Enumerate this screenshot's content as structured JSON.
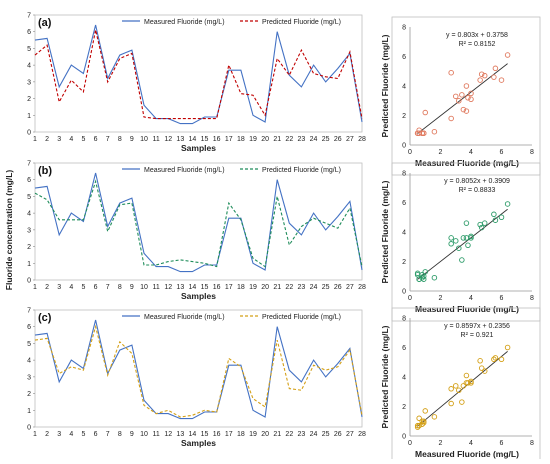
{
  "figure": {
    "shared_ylabel": "Fluoride concentration (mg/L)"
  },
  "chart_data": [
    {
      "type": "line",
      "panel": "(a)",
      "xlabel": "Samples",
      "ylabel": "Fluoride concentration (mg/L)",
      "x": [
        1,
        2,
        3,
        4,
        5,
        6,
        7,
        8,
        9,
        10,
        11,
        12,
        13,
        14,
        15,
        16,
        17,
        18,
        19,
        20,
        21,
        22,
        23,
        24,
        25,
        26,
        27,
        28
      ],
      "xlim": [
        1,
        28
      ],
      "ylim": [
        0,
        7
      ],
      "yticks": [
        0,
        1,
        2,
        3,
        4,
        5,
        6,
        7
      ],
      "grid": false,
      "legend_position": "top-right",
      "series": [
        {
          "name": "Measured Fluoride (mg/L)",
          "color": "#4472c4",
          "style": "solid",
          "values": [
            5.5,
            5.6,
            2.7,
            4.0,
            3.5,
            6.4,
            3.2,
            4.6,
            4.9,
            1.6,
            0.8,
            0.8,
            0.5,
            0.5,
            0.9,
            0.9,
            3.7,
            3.7,
            1.0,
            0.6,
            6.0,
            3.4,
            2.7,
            4.0,
            3.0,
            3.8,
            4.7,
            0.6
          ]
        },
        {
          "name": "Predicted Fluoride (mg/L)",
          "color": "#c00000",
          "style": "dashed",
          "values": [
            4.6,
            5.2,
            1.8,
            3.1,
            2.4,
            6.1,
            3.0,
            4.4,
            4.7,
            0.9,
            0.8,
            0.8,
            0.8,
            0.8,
            0.8,
            0.8,
            4.0,
            2.3,
            2.2,
            1.0,
            4.4,
            3.4,
            4.9,
            3.5,
            3.3,
            3.2,
            4.8,
            0.8
          ]
        }
      ]
    },
    {
      "type": "scatter",
      "panel": "(a)",
      "xlabel": "Measured Fluoride (mg/L)",
      "ylabel": "Predicted Fluoride (mg/L)",
      "xlim": [
        0,
        8
      ],
      "ylim": [
        0,
        8
      ],
      "xticks": [
        0,
        2,
        4,
        6,
        8
      ],
      "yticks": [
        0,
        2,
        4,
        6,
        8
      ],
      "marker_color": "#e07a5f",
      "trendline": {
        "slope": 0.803,
        "intercept": 0.3758,
        "color": "#333333"
      },
      "annotations": [
        "y = 0.803x + 0.3758",
        "R² = 0.8152"
      ],
      "x": [
        5.5,
        5.6,
        2.7,
        4.0,
        3.5,
        6.4,
        3.2,
        4.6,
        4.9,
        1.6,
        0.8,
        0.8,
        0.5,
        0.5,
        0.9,
        0.9,
        3.7,
        3.7,
        1.0,
        0.6,
        6.0,
        3.4,
        2.7,
        4.0,
        3.0,
        3.8,
        4.7,
        0.6
      ],
      "y": [
        4.6,
        5.2,
        1.8,
        3.1,
        2.4,
        6.1,
        3.0,
        4.4,
        4.7,
        0.9,
        0.8,
        0.8,
        0.8,
        0.8,
        0.8,
        0.8,
        4.0,
        2.3,
        2.2,
        1.0,
        4.4,
        3.4,
        4.9,
        3.5,
        3.3,
        3.2,
        4.8,
        0.8
      ]
    },
    {
      "type": "line",
      "panel": "(b)",
      "xlabel": "Samples",
      "ylabel": "Fluoride concentration (mg/L)",
      "x": [
        1,
        2,
        3,
        4,
        5,
        6,
        7,
        8,
        9,
        10,
        11,
        12,
        13,
        14,
        15,
        16,
        17,
        18,
        19,
        20,
        21,
        22,
        23,
        24,
        25,
        26,
        27,
        28
      ],
      "xlim": [
        1,
        28
      ],
      "ylim": [
        0,
        7
      ],
      "yticks": [
        0,
        1,
        2,
        3,
        4,
        5,
        6,
        7
      ],
      "grid": false,
      "legend_position": "top-right",
      "series": [
        {
          "name": "Measured Fluoride (mg/L)",
          "color": "#4472c4",
          "style": "solid",
          "values": [
            5.5,
            5.6,
            2.7,
            4.0,
            3.5,
            6.4,
            3.2,
            4.6,
            4.9,
            1.6,
            0.8,
            0.8,
            0.5,
            0.5,
            0.9,
            0.9,
            3.7,
            3.7,
            1.0,
            0.6,
            6.0,
            3.4,
            2.7,
            4.0,
            3.0,
            3.8,
            4.7,
            0.6
          ]
        },
        {
          "name": "Predicted Fluoride (mg/L)",
          "color": "#1e8c5a",
          "style": "dashed",
          "values": [
            5.2,
            4.8,
            3.6,
            3.6,
            3.6,
            5.9,
            2.9,
            4.5,
            4.6,
            0.9,
            0.9,
            1.1,
            1.2,
            1.1,
            1.0,
            0.8,
            4.6,
            3.6,
            1.3,
            0.8,
            5.0,
            2.1,
            3.2,
            3.7,
            3.4,
            3.1,
            4.3,
            0.8
          ]
        }
      ]
    },
    {
      "type": "scatter",
      "panel": "(b)",
      "xlabel": "Measured Fluoride (mg/L)",
      "ylabel": "Predicted Fluoride (mg/L)",
      "xlim": [
        0,
        8
      ],
      "ylim": [
        0,
        8
      ],
      "xticks": [
        0,
        2,
        4,
        6,
        8
      ],
      "yticks": [
        0,
        2,
        4,
        6,
        8
      ],
      "marker_color": "#2e9c6a",
      "trendline": {
        "slope": 0.8052,
        "intercept": 0.3909,
        "color": "#333333"
      },
      "annotations": [
        "y = 0.8052x + 0.3909",
        "R² = 0.8833"
      ],
      "x": [
        5.5,
        5.6,
        2.7,
        4.0,
        3.5,
        6.4,
        3.2,
        4.6,
        4.9,
        1.6,
        0.8,
        0.8,
        0.5,
        0.5,
        0.9,
        0.9,
        3.7,
        3.7,
        1.0,
        0.6,
        6.0,
        3.4,
        2.7,
        4.0,
        3.0,
        3.8,
        4.7,
        0.6
      ],
      "y": [
        5.2,
        4.8,
        3.6,
        3.6,
        3.6,
        5.9,
        2.9,
        4.5,
        4.6,
        0.9,
        0.9,
        1.1,
        1.2,
        1.1,
        1.0,
        0.8,
        4.6,
        3.6,
        1.3,
        0.8,
        5.0,
        2.1,
        3.2,
        3.7,
        3.4,
        3.1,
        4.3,
        0.8
      ]
    },
    {
      "type": "line",
      "panel": "(c)",
      "xlabel": "Samples",
      "ylabel": "Fluoride concentration (mg/L)",
      "x": [
        1,
        2,
        3,
        4,
        5,
        6,
        7,
        8,
        9,
        10,
        11,
        12,
        13,
        14,
        15,
        16,
        17,
        18,
        19,
        20,
        21,
        22,
        23,
        24,
        25,
        26,
        27,
        28
      ],
      "xlim": [
        1,
        28
      ],
      "ylim": [
        0,
        7
      ],
      "yticks": [
        0,
        1,
        2,
        3,
        4,
        5,
        6,
        7
      ],
      "grid": false,
      "legend_position": "top-right",
      "series": [
        {
          "name": "Measured Fluoride (mg/L)",
          "color": "#4472c4",
          "style": "solid",
          "values": [
            5.5,
            5.6,
            2.7,
            4.0,
            3.5,
            6.4,
            3.2,
            4.6,
            4.9,
            1.6,
            0.8,
            0.8,
            0.5,
            0.5,
            0.9,
            0.9,
            3.7,
            3.7,
            1.0,
            0.6,
            6.0,
            3.4,
            2.7,
            4.0,
            3.0,
            3.8,
            4.7,
            0.6
          ]
        },
        {
          "name": "Predicted Fluoride (mg/L)",
          "color": "#d4a017",
          "style": "dashed",
          "values": [
            5.2,
            5.3,
            3.2,
            3.6,
            3.4,
            6.0,
            3.1,
            5.1,
            4.4,
            1.3,
            0.8,
            1.0,
            0.6,
            0.7,
            1.0,
            0.9,
            4.1,
            3.6,
            1.7,
            1.2,
            5.2,
            2.3,
            2.2,
            3.7,
            3.4,
            3.6,
            4.6,
            0.7
          ]
        }
      ]
    },
    {
      "type": "scatter",
      "panel": "(c)",
      "xlabel": "Measured Fluoride (mg/L)",
      "ylabel": "Predicted Fluoride (mg/L)",
      "xlim": [
        0,
        8
      ],
      "ylim": [
        0,
        8
      ],
      "xticks": [
        0,
        2,
        4,
        6,
        8
      ],
      "yticks": [
        0,
        2,
        4,
        6,
        8
      ],
      "marker_color": "#d4a017",
      "trendline": {
        "slope": 0.8597,
        "intercept": 0.2356,
        "color": "#333333"
      },
      "annotations": [
        "y = 0.8597x + 0.2356",
        "R² = 0.921"
      ],
      "x": [
        5.5,
        5.6,
        2.7,
        4.0,
        3.5,
        6.4,
        3.2,
        4.6,
        4.9,
        1.6,
        0.8,
        0.8,
        0.5,
        0.5,
        0.9,
        0.9,
        3.7,
        3.7,
        1.0,
        0.6,
        6.0,
        3.4,
        2.7,
        4.0,
        3.0,
        3.8,
        4.7,
        0.6
      ],
      "y": [
        5.2,
        5.3,
        3.2,
        3.6,
        3.4,
        6.0,
        3.1,
        5.1,
        4.4,
        1.3,
        0.8,
        1.0,
        0.6,
        0.7,
        1.0,
        0.9,
        4.1,
        3.6,
        1.7,
        1.2,
        5.2,
        2.3,
        2.2,
        3.7,
        3.4,
        3.6,
        4.6,
        0.7
      ]
    }
  ]
}
